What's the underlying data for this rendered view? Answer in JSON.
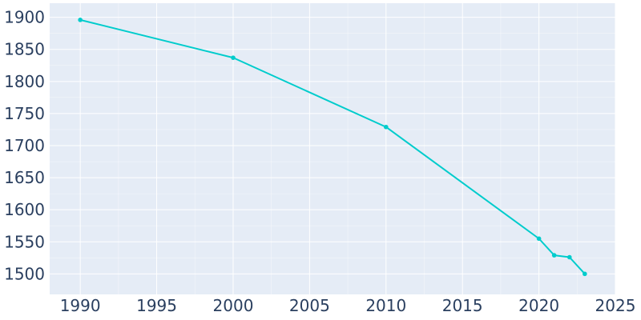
{
  "chart_data": {
    "type": "line",
    "title": "",
    "xlabel": "",
    "ylabel": "",
    "xlim": [
      1988,
      2025
    ],
    "ylim": [
      1468,
      1922
    ],
    "xticks": [
      1990,
      1995,
      2000,
      2005,
      2010,
      2015,
      2020,
      2025
    ],
    "yticks": [
      1500,
      1550,
      1600,
      1650,
      1700,
      1750,
      1800,
      1850,
      1900
    ],
    "grid": true,
    "legend": "none",
    "series": [
      {
        "color": "#00cccc",
        "x": [
          1990,
          2000,
          2010,
          2020,
          2021,
          2022,
          2023
        ],
        "y": [
          1896,
          1837,
          1729,
          1555,
          1529,
          1526,
          1500
        ]
      }
    ],
    "colors": {
      "plot_background": "#e5ecf6",
      "grid": "#ffffff",
      "tick_text": "#2a3f5f"
    }
  }
}
